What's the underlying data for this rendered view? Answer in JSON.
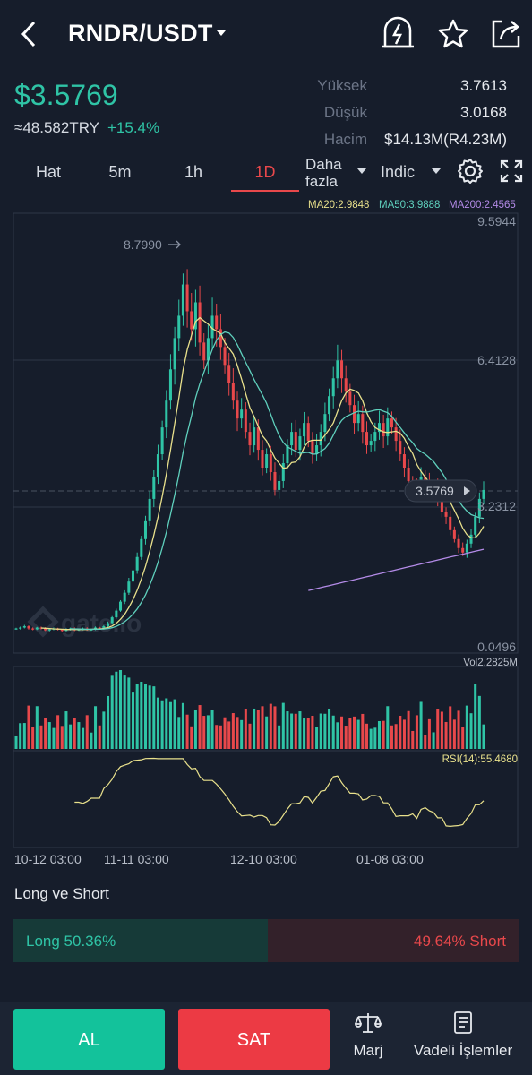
{
  "header": {
    "pair": "RNDR/USDT",
    "icons": [
      "back-icon",
      "caret-down-icon",
      "price-alert-icon",
      "star-icon",
      "share-icon"
    ]
  },
  "ticker": {
    "price": "$3.5769",
    "price_try": "≈48.582TRY",
    "change": "+15.4%",
    "stats": [
      {
        "label": "Yüksek",
        "value": "3.7613"
      },
      {
        "label": "Düşük",
        "value": "3.0168"
      },
      {
        "label": "Hacim",
        "value": "$14.13M(R4.23M)"
      }
    ]
  },
  "timeframes": {
    "items": [
      "Hat",
      "5m",
      "1h",
      "1D"
    ],
    "active": "1D",
    "more_line1": "Daha",
    "more_line2": "fazla",
    "indic": "Indic"
  },
  "ma_legend": {
    "ma20": "MA20:2.9848",
    "ma50": "MA50:3.9888",
    "ma200": "MA200:2.4565"
  },
  "colors": {
    "up": "#2fc4a6",
    "down": "#e8484b",
    "ma20": "#e9e18c",
    "ma50": "#5fd0bd",
    "ma200": "#b48be8",
    "background": "#161d2b"
  },
  "chart_data": {
    "type": "candlestick",
    "y_axis_labels": [
      "9.5944",
      "6.4128",
      "3.2312",
      "0.0496"
    ],
    "ylim": [
      0.0496,
      9.5944
    ],
    "high_marker": "8.7990",
    "current_price_tag": "3.5769",
    "x_tick_labels": [
      "10-12 03:00",
      "11-11 03:00",
      "12-10 03:00",
      "01-08 03:00"
    ],
    "watermark": "gate.io",
    "close_series": [
      0.5,
      0.52,
      0.55,
      0.5,
      0.48,
      0.52,
      0.5,
      0.46,
      0.48,
      0.5,
      0.47,
      0.45,
      0.48,
      0.5,
      0.46,
      0.48,
      0.5,
      0.47,
      0.48,
      0.52,
      0.5,
      0.55,
      0.62,
      0.75,
      0.9,
      1.1,
      1.3,
      1.55,
      1.8,
      2.1,
      2.5,
      2.9,
      3.4,
      3.9,
      4.4,
      5.0,
      5.6,
      6.3,
      7.0,
      7.5,
      8.2,
      7.6,
      7.2,
      7.8,
      6.9,
      6.5,
      7.0,
      7.5,
      7.2,
      6.8,
      6.4,
      6.0,
      5.6,
      5.2,
      5.4,
      4.9,
      4.6,
      5.0,
      4.5,
      4.1,
      4.4,
      4.0,
      3.6,
      3.8,
      4.2,
      4.6,
      4.9,
      4.5,
      4.8,
      5.1,
      4.7,
      4.4,
      4.6,
      4.9,
      5.3,
      5.7,
      6.1,
      6.5,
      6.1,
      5.8,
      5.5,
      5.1,
      5.3,
      4.9,
      4.6,
      4.7,
      4.9,
      5.1,
      4.8,
      5.2,
      5.0,
      4.7,
      4.4,
      4.1,
      3.8,
      3.7,
      3.5,
      3.9,
      3.8,
      3.6,
      3.7,
      3.4,
      3.1,
      3.0,
      2.7,
      2.5,
      2.3,
      2.2,
      2.4,
      2.6,
      3.0,
      3.4,
      3.6
    ],
    "volume_label": "Vol2.2825M",
    "rsi_label": "RSI(14):55.4680"
  },
  "long_short": {
    "title": "Long ve Short",
    "long_label": "Long 50.36%",
    "short_label": "49.64% Short",
    "long_pct": 50.36
  },
  "footer": {
    "buy": "AL",
    "sell": "SAT",
    "margin": "Marj",
    "futures": "Vadeli İşlemler"
  }
}
